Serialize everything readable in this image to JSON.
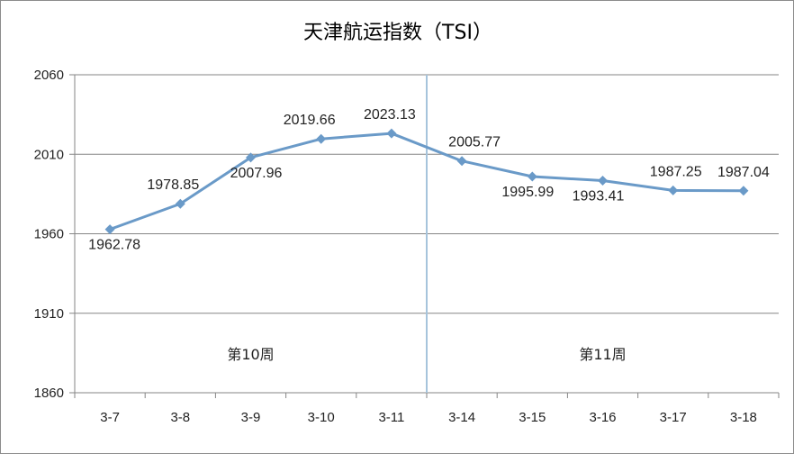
{
  "chart_data": {
    "type": "line",
    "title": "天津航运指数（TSI）",
    "categories": [
      "3-7",
      "3-8",
      "3-9",
      "3-10",
      "3-11",
      "3-14",
      "3-15",
      "3-16",
      "3-17",
      "3-18"
    ],
    "series": [
      {
        "values": [
          1962.78,
          1978.85,
          2007.96,
          2019.66,
          2023.13,
          2005.77,
          1995.99,
          1993.41,
          1987.25,
          1987.04
        ]
      }
    ],
    "data_labels": [
      "1962.78",
      "1978.85",
      "2007.96",
      "2019.66",
      "2023.13",
      "2005.77",
      "1995.99",
      "1993.41",
      "1987.25",
      "1987.04"
    ],
    "ylim": [
      1860,
      2060
    ],
    "yticks": [
      1860,
      1910,
      1960,
      2010,
      2060
    ],
    "grid": true,
    "week_labels": [
      "第10周",
      "第11周"
    ],
    "divider_between": [
      "3-11",
      "3-14"
    ],
    "colors": {
      "series": "#6a9ac8",
      "divider": "#a6c4dc",
      "grid": "#868686"
    }
  }
}
